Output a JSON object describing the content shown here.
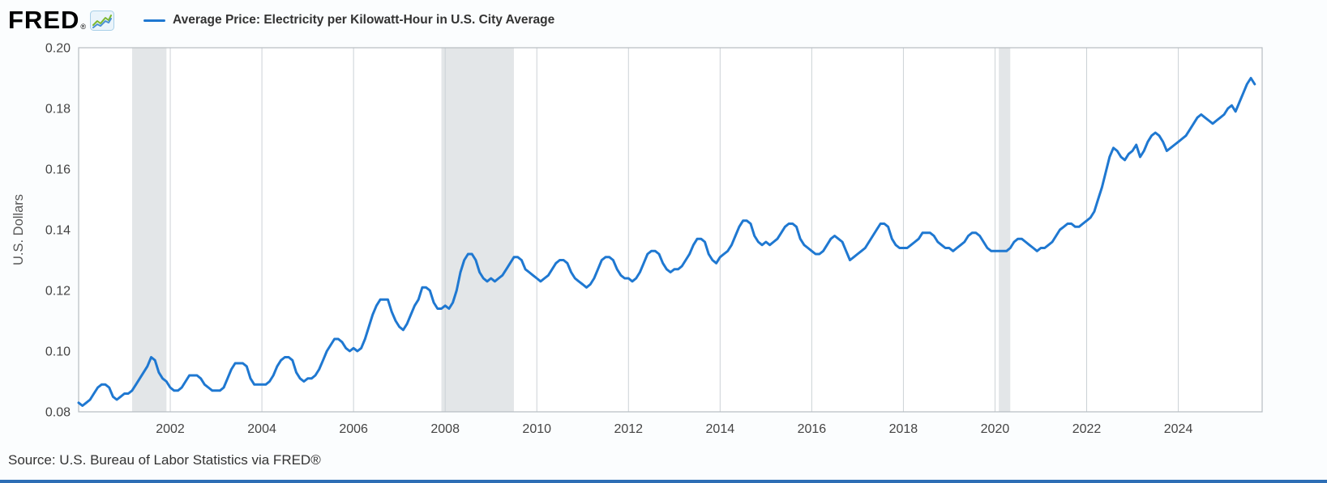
{
  "header": {
    "logo": "FRED",
    "logo_mark": "®",
    "legend_label": "Average Price: Electricity per Kilowatt-Hour in U.S. City Average"
  },
  "footer": {
    "source": "Source: U.S. Bureau of Labor Statistics via FRED®"
  },
  "colors": {
    "line": "#1f78d1",
    "recession": "#e3e6e8",
    "grid": "#ccd2d6",
    "frame": "#b6bcc1",
    "axis_text": "#444444",
    "legend_text": "#333333",
    "ylabel_text": "#555555",
    "bottom_bar": "#2d6eb5"
  },
  "chart_data": {
    "type": "line",
    "title": "Average Price: Electricity per Kilowatt-Hour in U.S. City Average",
    "xlabel": "",
    "ylabel": "U.S. Dollars",
    "x_range": [
      2000,
      2025.83
    ],
    "ylim": [
      0.08,
      0.2
    ],
    "y_ticks": [
      "0.08",
      "0.10",
      "0.12",
      "0.14",
      "0.16",
      "0.18",
      "0.20"
    ],
    "x_ticks": [
      2002,
      2004,
      2006,
      2008,
      2010,
      2012,
      2014,
      2016,
      2018,
      2020,
      2022,
      2024
    ],
    "grid": "vertical-only",
    "legend_position": "top-left",
    "recessions": [
      [
        2001.167,
        2001.917
      ],
      [
        2007.917,
        2009.5
      ],
      [
        2020.083,
        2020.333
      ]
    ],
    "series": [
      {
        "name": "Average Price: Electricity per Kilowatt-Hour in U.S. City Average",
        "units": "U.S. Dollars",
        "frequency": "monthly",
        "start_year": 2000,
        "values": [
          0.083,
          0.082,
          0.083,
          0.084,
          0.086,
          0.088,
          0.089,
          0.089,
          0.088,
          0.085,
          0.084,
          0.085,
          0.086,
          0.086,
          0.087,
          0.089,
          0.091,
          0.093,
          0.095,
          0.098,
          0.097,
          0.093,
          0.091,
          0.09,
          0.088,
          0.087,
          0.087,
          0.088,
          0.09,
          0.092,
          0.092,
          0.092,
          0.091,
          0.089,
          0.088,
          0.087,
          0.087,
          0.087,
          0.088,
          0.091,
          0.094,
          0.096,
          0.096,
          0.096,
          0.095,
          0.091,
          0.089,
          0.089,
          0.089,
          0.089,
          0.09,
          0.092,
          0.095,
          0.097,
          0.098,
          0.098,
          0.097,
          0.093,
          0.091,
          0.09,
          0.091,
          0.091,
          0.092,
          0.094,
          0.097,
          0.1,
          0.102,
          0.104,
          0.104,
          0.103,
          0.101,
          0.1,
          0.101,
          0.1,
          0.101,
          0.104,
          0.108,
          0.112,
          0.115,
          0.117,
          0.117,
          0.117,
          0.113,
          0.11,
          0.108,
          0.107,
          0.109,
          0.112,
          0.115,
          0.117,
          0.121,
          0.121,
          0.12,
          0.116,
          0.114,
          0.114,
          0.115,
          0.114,
          0.116,
          0.12,
          0.126,
          0.13,
          0.132,
          0.132,
          0.13,
          0.126,
          0.124,
          0.123,
          0.124,
          0.123,
          0.124,
          0.125,
          0.127,
          0.129,
          0.131,
          0.131,
          0.13,
          0.127,
          0.126,
          0.125,
          0.124,
          0.123,
          0.124,
          0.125,
          0.127,
          0.129,
          0.13,
          0.13,
          0.129,
          0.126,
          0.124,
          0.123,
          0.122,
          0.121,
          0.122,
          0.124,
          0.127,
          0.13,
          0.131,
          0.131,
          0.13,
          0.127,
          0.125,
          0.124,
          0.124,
          0.123,
          0.124,
          0.126,
          0.129,
          0.132,
          0.133,
          0.133,
          0.132,
          0.129,
          0.127,
          0.126,
          0.127,
          0.127,
          0.128,
          0.13,
          0.132,
          0.135,
          0.137,
          0.137,
          0.136,
          0.132,
          0.13,
          0.129,
          0.131,
          0.132,
          0.133,
          0.135,
          0.138,
          0.141,
          0.143,
          0.143,
          0.142,
          0.138,
          0.136,
          0.135,
          0.136,
          0.135,
          0.136,
          0.137,
          0.139,
          0.141,
          0.142,
          0.142,
          0.141,
          0.137,
          0.135,
          0.134,
          0.133,
          0.132,
          0.132,
          0.133,
          0.135,
          0.137,
          0.138,
          0.137,
          0.136,
          0.133,
          0.13,
          0.131,
          0.132,
          0.133,
          0.134,
          0.136,
          0.138,
          0.14,
          0.142,
          0.142,
          0.141,
          0.137,
          0.135,
          0.134,
          0.134,
          0.134,
          0.135,
          0.136,
          0.137,
          0.139,
          0.139,
          0.139,
          0.138,
          0.136,
          0.135,
          0.134,
          0.134,
          0.133,
          0.134,
          0.135,
          0.136,
          0.138,
          0.139,
          0.139,
          0.138,
          0.136,
          0.134,
          0.133,
          0.133,
          0.133,
          0.133,
          0.133,
          0.134,
          0.136,
          0.137,
          0.137,
          0.136,
          0.135,
          0.134,
          0.133,
          0.134,
          0.134,
          0.135,
          0.136,
          0.138,
          0.14,
          0.141,
          0.142,
          0.142,
          0.141,
          0.141,
          0.142,
          0.143,
          0.144,
          0.146,
          0.15,
          0.154,
          0.159,
          0.164,
          0.167,
          0.166,
          0.164,
          0.163,
          0.165,
          0.166,
          0.168,
          0.164,
          0.166,
          0.169,
          0.171,
          0.172,
          0.171,
          0.169,
          0.166,
          0.167,
          0.168,
          0.169,
          0.17,
          0.171,
          0.173,
          0.175,
          0.177,
          0.178,
          0.177,
          0.176,
          0.175,
          0.176,
          0.177,
          0.178,
          0.18,
          0.181,
          0.179,
          0.182,
          0.185,
          0.188,
          0.19,
          0.188
        ]
      }
    ]
  }
}
